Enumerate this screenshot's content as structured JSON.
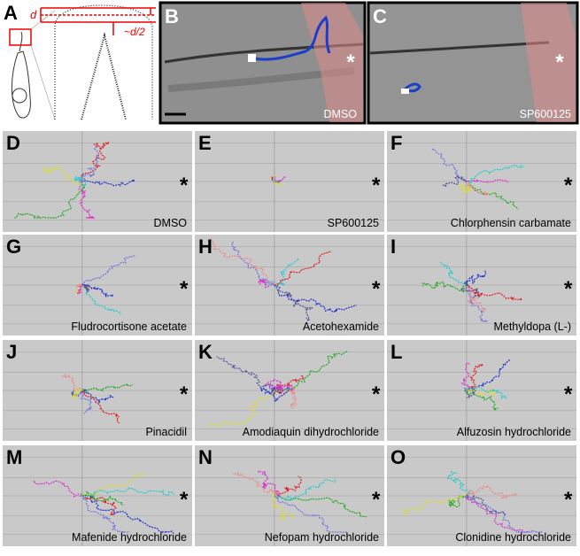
{
  "panel_a": {
    "letter": "A",
    "d_label": "d",
    "half_label": "~d/2"
  },
  "panel_b": {
    "letter": "B",
    "label": "DMSO",
    "star": "*"
  },
  "panel_c": {
    "letter": "C",
    "label": "SP600125",
    "star": "*"
  },
  "plots": [
    {
      "letter": "D",
      "label": "DMSO",
      "star": "*"
    },
    {
      "letter": "E",
      "label": "SP600125",
      "star": "*"
    },
    {
      "letter": "F",
      "label": "Chlorphensin carbamate",
      "star": "*"
    },
    {
      "letter": "G",
      "label": "Fludrocortisone acetate",
      "star": "*"
    },
    {
      "letter": "H",
      "label": "Acetohexamide",
      "star": "*"
    },
    {
      "letter": "I",
      "label": "Methyldopa (L-)",
      "star": "*"
    },
    {
      "letter": "J",
      "label": "Pinacidil",
      "star": "*"
    },
    {
      "letter": "K",
      "label": "Amodiaquin dihydrochloride",
      "star": "*"
    },
    {
      "letter": "L",
      "label": "Alfuzosin hydrochloride",
      "star": "*"
    },
    {
      "letter": "M",
      "label": "Mafenide hydrochloride",
      "star": "*"
    },
    {
      "letter": "N",
      "label": "Nefopam hydrochloride",
      "star": "*"
    },
    {
      "letter": "O",
      "label": "Clonidine hydrochloride",
      "star": "*"
    }
  ]
}
